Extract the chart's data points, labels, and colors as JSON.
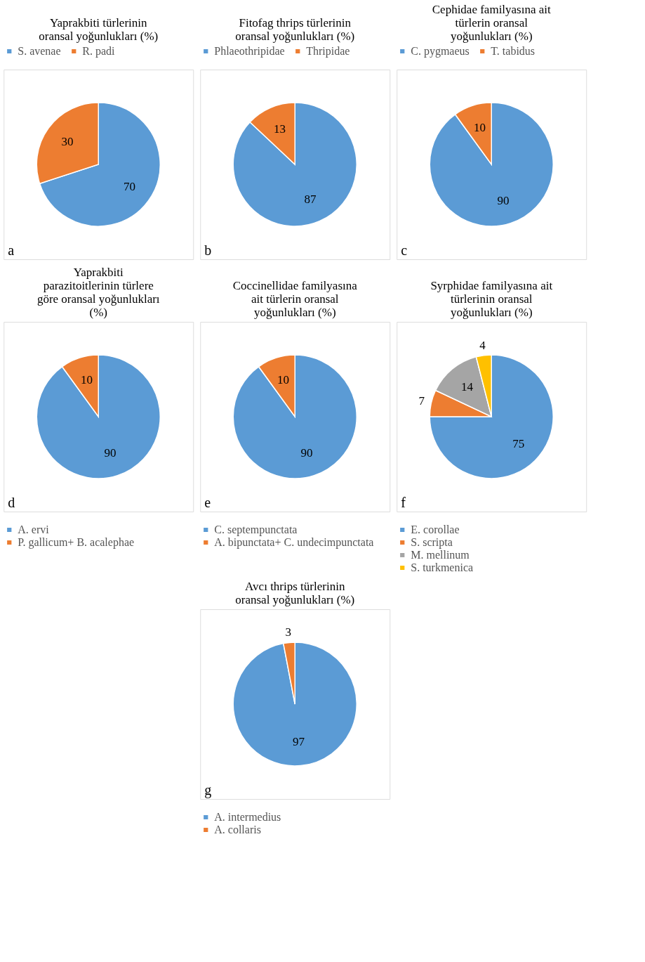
{
  "chart_data": [
    {
      "type": "pie",
      "title": "Yaprakbiti türlerinin oransal yoğunlukları (%)",
      "categories": [
        "S. avenae",
        "R. padi"
      ],
      "values": [
        70,
        30
      ],
      "colors": [
        "#5b9bd5",
        "#ed7d31"
      ],
      "data_labels": true,
      "legend": "top",
      "annotations": [
        "a"
      ]
    },
    {
      "type": "pie",
      "title": "Fitofag thrips türlerinin oransal yoğunlukları (%)",
      "categories": [
        "Phlaeothripidae",
        "Thripidae"
      ],
      "values": [
        87,
        13
      ],
      "colors": [
        "#5b9bd5",
        "#ed7d31"
      ],
      "data_labels": true,
      "legend": "top",
      "annotations": [
        "b"
      ]
    },
    {
      "type": "pie",
      "title": "Cephidae familyasına ait türlerin oransal yoğunlukları (%)",
      "categories": [
        "C. pygmaeus",
        "T. tabidus"
      ],
      "values": [
        90,
        10
      ],
      "colors": [
        "#5b9bd5",
        "#ed7d31"
      ],
      "data_labels": true,
      "legend": "top",
      "annotations": [
        "c"
      ]
    },
    {
      "type": "pie",
      "title": "Yaprakbiti parazitoitlerinin türlere göre oransal yoğunlukları (%)",
      "categories": [
        "A. ervi",
        "P. gallicum+ B. acalephae"
      ],
      "values": [
        90,
        10
      ],
      "colors": [
        "#5b9bd5",
        "#ed7d31"
      ],
      "data_labels": true,
      "legend": "bottom",
      "annotations": [
        "d"
      ]
    },
    {
      "type": "pie",
      "title": "Coccinellidae familyasına ait türlerin oransal yoğunlukları (%)",
      "categories": [
        "C. septempunctata",
        "A. bipunctata+ C. undecimpunctata"
      ],
      "values": [
        90,
        10
      ],
      "colors": [
        "#5b9bd5",
        "#ed7d31"
      ],
      "data_labels": true,
      "legend": "bottom",
      "annotations": [
        "e"
      ]
    },
    {
      "type": "pie",
      "title": "Syrphidae familyasına ait türlerinin oransal yoğunlukları (%)",
      "categories": [
        "E. corollae",
        "S. scripta",
        "M. mellinum",
        "S. turkmenica"
      ],
      "values": [
        75,
        7,
        14,
        4
      ],
      "colors": [
        "#5b9bd5",
        "#ed7d31",
        "#a5a5a5",
        "#ffc000"
      ],
      "data_labels": true,
      "legend": "bottom",
      "annotations": [
        "f"
      ]
    },
    {
      "type": "pie",
      "title": "Avcı thrips türlerinin oransal yoğunlukları (%)",
      "categories": [
        "A. intermedius",
        "A. collaris"
      ],
      "values": [
        97,
        3
      ],
      "colors": [
        "#5b9bd5",
        "#ed7d31"
      ],
      "data_labels": true,
      "legend": "bottom",
      "annotations": [
        "g"
      ]
    }
  ]
}
